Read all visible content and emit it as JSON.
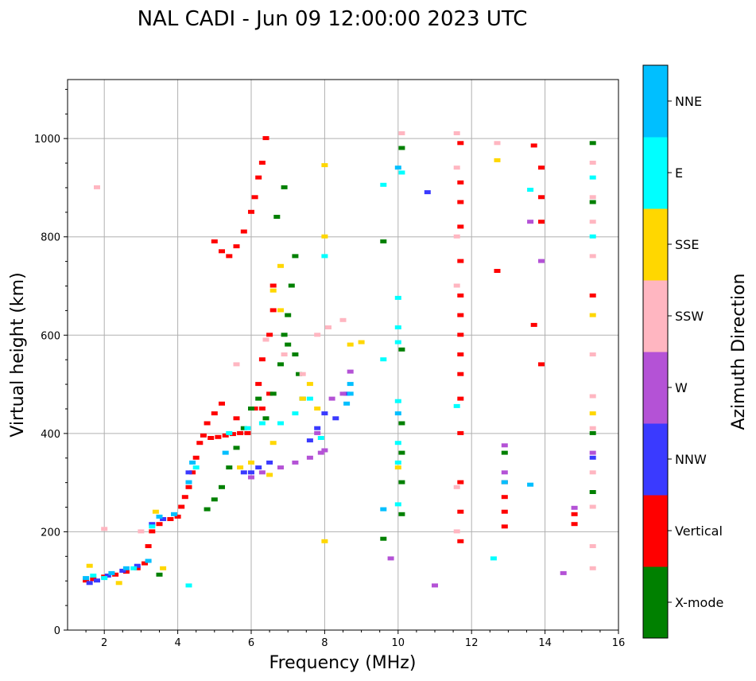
{
  "chart_data": {
    "type": "scatter",
    "title": "NAL CADI - Jun 09 12:00:00 2023 UTC",
    "xlabel": "Frequency (MHz)",
    "ylabel": "Virtual height (km)",
    "colorbar_label": "Azimuth Direction",
    "xlim": [
      1,
      16
    ],
    "ylim": [
      0,
      1120
    ],
    "xticks": [
      2,
      4,
      6,
      8,
      10,
      12,
      14,
      16
    ],
    "yticks": [
      0,
      200,
      400,
      600,
      800,
      1000
    ],
    "grid": true,
    "directions": [
      {
        "name": "X-mode",
        "color": "#008000"
      },
      {
        "name": "Vertical",
        "color": "#ff0000"
      },
      {
        "name": "NNW",
        "color": "#3a3aff"
      },
      {
        "name": "W",
        "color": "#b452d6"
      },
      {
        "name": "SSW",
        "color": "#ffb6c1"
      },
      {
        "name": "SSE",
        "color": "#ffd700"
      },
      {
        "name": "E",
        "color": "#00ffff"
      },
      {
        "name": "NNE",
        "color": "#00bfff"
      }
    ],
    "traces": [
      {
        "dir": "Vertical",
        "points": [
          [
            1.5,
            100
          ],
          [
            1.7,
            103
          ],
          [
            2.0,
            108
          ],
          [
            2.3,
            112
          ],
          [
            2.6,
            118
          ],
          [
            2.9,
            125
          ],
          [
            3.1,
            135
          ],
          [
            3.2,
            170
          ],
          [
            3.3,
            200
          ],
          [
            3.5,
            215
          ],
          [
            3.8,
            225
          ],
          [
            4.0,
            230
          ],
          [
            4.1,
            250
          ],
          [
            4.2,
            270
          ],
          [
            4.3,
            290
          ],
          [
            4.4,
            320
          ],
          [
            4.5,
            350
          ],
          [
            4.6,
            380
          ],
          [
            4.7,
            395
          ],
          [
            4.9,
            390
          ],
          [
            5.1,
            392
          ],
          [
            5.3,
            395
          ],
          [
            5.5,
            398
          ],
          [
            5.7,
            400
          ],
          [
            4.8,
            420
          ],
          [
            5.0,
            440
          ],
          [
            5.2,
            460
          ],
          [
            5.6,
            430
          ],
          [
            5.9,
            400
          ],
          [
            6.1,
            450
          ],
          [
            6.2,
            500
          ],
          [
            6.3,
            550
          ],
          [
            5.0,
            790
          ],
          [
            5.2,
            770
          ],
          [
            5.4,
            760
          ],
          [
            5.6,
            780
          ],
          [
            5.8,
            810
          ],
          [
            6.0,
            850
          ],
          [
            6.1,
            880
          ],
          [
            6.2,
            920
          ],
          [
            6.3,
            950
          ],
          [
            6.4,
            1000
          ],
          [
            6.5,
            600
          ],
          [
            6.6,
            650
          ],
          [
            6.6,
            700
          ],
          [
            6.3,
            450
          ],
          [
            6.5,
            480
          ]
        ]
      },
      {
        "dir": "Vertical",
        "points": [
          [
            11.7,
            180
          ],
          [
            11.7,
            240
          ],
          [
            11.7,
            300
          ],
          [
            11.7,
            400
          ],
          [
            11.7,
            470
          ],
          [
            11.7,
            520
          ],
          [
            11.7,
            560
          ],
          [
            11.7,
            600
          ],
          [
            11.7,
            640
          ],
          [
            11.7,
            680
          ],
          [
            11.7,
            750
          ],
          [
            11.7,
            820
          ],
          [
            11.7,
            870
          ],
          [
            11.7,
            910
          ],
          [
            11.7,
            990
          ],
          [
            12.9,
            210
          ],
          [
            12.9,
            240
          ],
          [
            12.9,
            270
          ],
          [
            12.9,
            300
          ],
          [
            12.7,
            730
          ],
          [
            13.9,
            540
          ],
          [
            13.9,
            830
          ],
          [
            13.9,
            880
          ],
          [
            13.9,
            940
          ],
          [
            13.7,
            985
          ],
          [
            13.7,
            620
          ],
          [
            14.8,
            215
          ],
          [
            14.8,
            235
          ],
          [
            15.3,
            680
          ]
        ]
      },
      {
        "dir": "X-mode",
        "points": [
          [
            3.5,
            112
          ],
          [
            4.8,
            245
          ],
          [
            5.0,
            265
          ],
          [
            5.2,
            290
          ],
          [
            5.4,
            330
          ],
          [
            5.6,
            370
          ],
          [
            5.8,
            410
          ],
          [
            6.0,
            450
          ],
          [
            6.2,
            470
          ],
          [
            6.4,
            430
          ],
          [
            6.6,
            480
          ],
          [
            6.8,
            540
          ],
          [
            7.0,
            580
          ],
          [
            7.2,
            560
          ],
          [
            7.0,
            640
          ],
          [
            7.1,
            700
          ],
          [
            7.2,
            760
          ],
          [
            7.3,
            520
          ],
          [
            7.4,
            470
          ],
          [
            6.9,
            600
          ],
          [
            6.7,
            840
          ],
          [
            6.9,
            900
          ],
          [
            10.1,
            235
          ],
          [
            10.1,
            300
          ],
          [
            10.1,
            360
          ],
          [
            10.1,
            420
          ],
          [
            10.1,
            570
          ],
          [
            10.1,
            980
          ],
          [
            12.9,
            360
          ],
          [
            15.3,
            400
          ],
          [
            15.3,
            280
          ],
          [
            15.3,
            990
          ],
          [
            15.3,
            870
          ],
          [
            9.6,
            185
          ],
          [
            9.6,
            790
          ]
        ]
      },
      {
        "dir": "NNW",
        "points": [
          [
            1.6,
            95
          ],
          [
            1.8,
            100
          ],
          [
            2.1,
            110
          ],
          [
            2.5,
            120
          ],
          [
            2.9,
            130
          ],
          [
            3.3,
            215
          ],
          [
            3.6,
            225
          ],
          [
            4.3,
            320
          ],
          [
            5.8,
            320
          ],
          [
            6.0,
            320
          ],
          [
            6.2,
            330
          ],
          [
            6.5,
            340
          ],
          [
            7.6,
            385
          ],
          [
            7.8,
            410
          ],
          [
            8.0,
            440
          ],
          [
            8.3,
            430
          ],
          [
            8.6,
            480
          ],
          [
            10.8,
            890
          ],
          [
            15.3,
            350
          ]
        ]
      },
      {
        "dir": "W",
        "points": [
          [
            6.0,
            310
          ],
          [
            6.3,
            320
          ],
          [
            6.8,
            330
          ],
          [
            7.2,
            340
          ],
          [
            7.6,
            350
          ],
          [
            7.9,
            360
          ],
          [
            8.0,
            365
          ],
          [
            7.8,
            400
          ],
          [
            8.2,
            470
          ],
          [
            8.5,
            480
          ],
          [
            8.7,
            525
          ],
          [
            12.9,
            320
          ],
          [
            12.9,
            375
          ],
          [
            13.6,
            830
          ],
          [
            13.9,
            750
          ],
          [
            14.5,
            115
          ],
          [
            14.8,
            248
          ],
          [
            15.3,
            360
          ],
          [
            11.0,
            90
          ],
          [
            9.8,
            145
          ]
        ]
      },
      {
        "dir": "SSW",
        "points": [
          [
            2.0,
            205
          ],
          [
            3.0,
            200
          ],
          [
            5.6,
            540
          ],
          [
            6.4,
            590
          ],
          [
            6.9,
            560
          ],
          [
            7.4,
            520
          ],
          [
            7.8,
            600
          ],
          [
            8.1,
            615
          ],
          [
            8.5,
            630
          ],
          [
            11.6,
            200
          ],
          [
            11.6,
            290
          ],
          [
            11.6,
            700
          ],
          [
            11.6,
            800
          ],
          [
            11.6,
            940
          ],
          [
            11.6,
            1010
          ],
          [
            12.7,
            990
          ],
          [
            15.3,
            125
          ],
          [
            15.3,
            170
          ],
          [
            15.3,
            250
          ],
          [
            15.3,
            320
          ],
          [
            15.3,
            410
          ],
          [
            15.3,
            475
          ],
          [
            15.3,
            560
          ],
          [
            15.3,
            760
          ],
          [
            15.3,
            830
          ],
          [
            15.3,
            880
          ],
          [
            15.3,
            950
          ],
          [
            10.1,
            1010
          ],
          [
            1.8,
            900
          ]
        ]
      },
      {
        "dir": "SSE",
        "points": [
          [
            1.6,
            130
          ],
          [
            2.4,
            95
          ],
          [
            3.4,
            240
          ],
          [
            5.7,
            330
          ],
          [
            6.0,
            340
          ],
          [
            6.5,
            315
          ],
          [
            6.6,
            380
          ],
          [
            6.8,
            650
          ],
          [
            6.6,
            690
          ],
          [
            6.8,
            740
          ],
          [
            7.4,
            470
          ],
          [
            7.6,
            500
          ],
          [
            7.8,
            450
          ],
          [
            8.0,
            800
          ],
          [
            8.0,
            180
          ],
          [
            8.0,
            945
          ],
          [
            8.7,
            580
          ],
          [
            9.0,
            585
          ],
          [
            10.0,
            330
          ],
          [
            12.7,
            955
          ],
          [
            15.3,
            440
          ],
          [
            15.3,
            640
          ],
          [
            3.6,
            125
          ]
        ]
      },
      {
        "dir": "E",
        "points": [
          [
            1.7,
            110
          ],
          [
            2.0,
            105
          ],
          [
            2.8,
            125
          ],
          [
            3.3,
            210
          ],
          [
            4.3,
            90
          ],
          [
            4.5,
            330
          ],
          [
            5.4,
            400
          ],
          [
            5.9,
            410
          ],
          [
            6.3,
            420
          ],
          [
            6.8,
            420
          ],
          [
            7.2,
            440
          ],
          [
            7.6,
            470
          ],
          [
            7.9,
            390
          ],
          [
            8.0,
            760
          ],
          [
            9.6,
            905
          ],
          [
            10.0,
            675
          ],
          [
            10.0,
            615
          ],
          [
            10.0,
            585
          ],
          [
            10.0,
            465
          ],
          [
            10.0,
            380
          ],
          [
            10.0,
            340
          ],
          [
            10.0,
            255
          ],
          [
            10.1,
            930
          ],
          [
            11.6,
            455
          ],
          [
            12.6,
            145
          ],
          [
            13.6,
            895
          ],
          [
            15.3,
            800
          ],
          [
            15.3,
            920
          ],
          [
            9.6,
            550
          ]
        ]
      },
      {
        "dir": "NNE",
        "points": [
          [
            1.5,
            105
          ],
          [
            2.2,
            115
          ],
          [
            2.6,
            125
          ],
          [
            3.2,
            140
          ],
          [
            3.5,
            230
          ],
          [
            3.9,
            235
          ],
          [
            4.3,
            300
          ],
          [
            4.4,
            340
          ],
          [
            5.3,
            360
          ],
          [
            8.6,
            460
          ],
          [
            8.7,
            480
          ],
          [
            8.7,
            500
          ],
          [
            12.9,
            300
          ],
          [
            13.6,
            295
          ],
          [
            9.6,
            245
          ],
          [
            10.0,
            440
          ],
          [
            10.0,
            940
          ]
        ]
      }
    ]
  }
}
